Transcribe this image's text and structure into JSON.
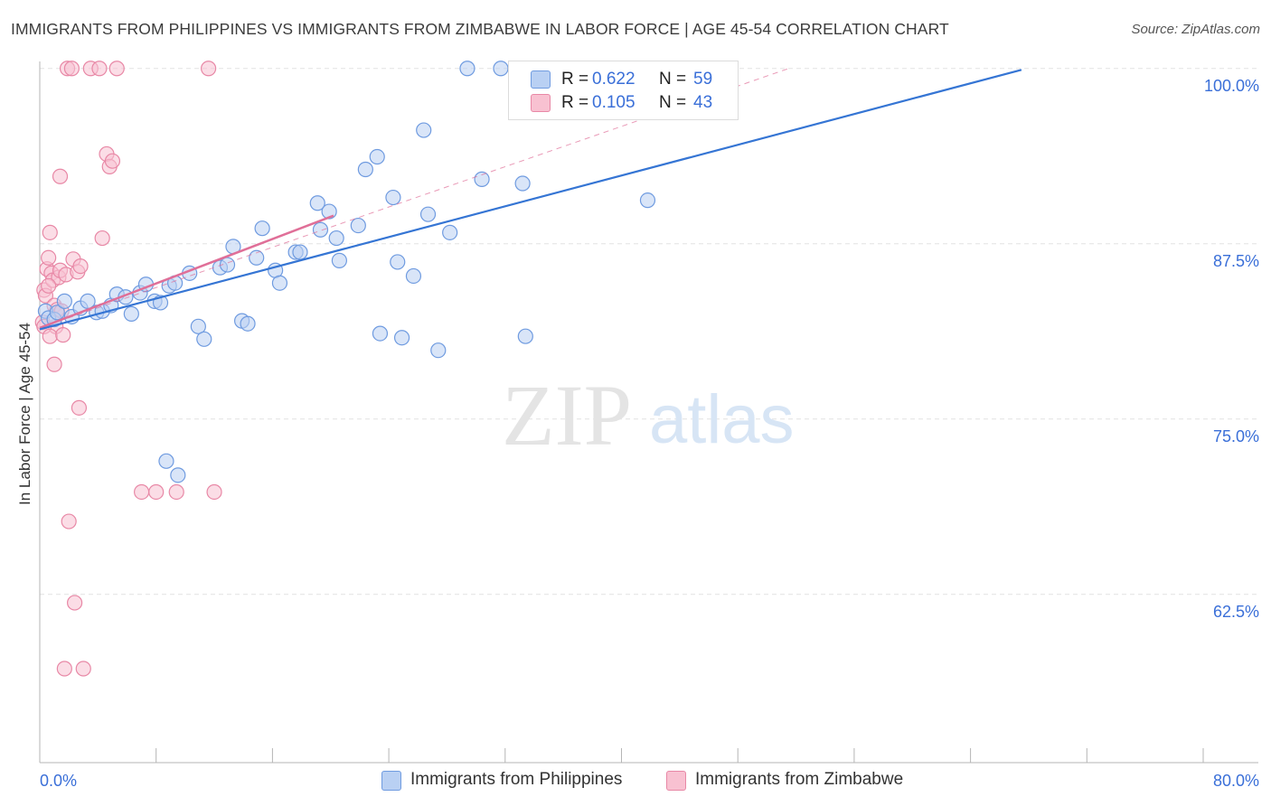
{
  "title": "IMMIGRANTS FROM PHILIPPINES VS IMMIGRANTS FROM ZIMBABWE IN LABOR FORCE | AGE 45-54 CORRELATION CHART",
  "source": "Source: ZipAtlas.com",
  "watermark": {
    "zip": "ZIP",
    "atlas": "atlas"
  },
  "legend": {
    "r_label": "R =",
    "n_label": "N =",
    "philippines": {
      "r": "0.622",
      "n": "59"
    },
    "zimbabwe": {
      "r": "0.105",
      "n": "43"
    }
  },
  "colors": {
    "philippines_fill": "#b9d0f3",
    "philippines_stroke": "#6f9be0",
    "philippines_line": "#3575d4",
    "zimbabwe_fill": "#f8c1d1",
    "zimbabwe_stroke": "#e888a6",
    "zimbabwe_line": "#e06f98",
    "tick_label": "#3a6fd8",
    "grid": "#e2e2e2"
  },
  "chart_data": {
    "type": "scatter",
    "title": "IMMIGRANTS FROM PHILIPPINES VS IMMIGRANTS FROM ZIMBABWE IN LABOR FORCE | AGE 45-54 CORRELATION CHART",
    "xlabel": "",
    "ylabel": "In Labor Force | Age 45-54",
    "xlim": [
      0,
      80
    ],
    "ylim": [
      50.5,
      100.5
    ],
    "x_tick_labels": [
      "0.0%",
      "80.0%"
    ],
    "y_ticks": [
      62.5,
      75,
      87.5,
      100
    ],
    "y_tick_labels": [
      "62.5%",
      "75.0%",
      "87.5%",
      "100.0%"
    ],
    "grid": true,
    "series": [
      {
        "name": "Immigrants from Philippines",
        "trend": {
          "x": [
            0,
            67.5
          ],
          "y": [
            81.4,
            99.9
          ]
        },
        "points": [
          [
            0.4,
            82.7
          ],
          [
            0.6,
            82.2
          ],
          [
            1,
            82.1
          ],
          [
            1.2,
            82.6
          ],
          [
            1.7,
            83.4
          ],
          [
            2.2,
            82.3
          ],
          [
            2.8,
            82.9
          ],
          [
            3.3,
            83.4
          ],
          [
            3.9,
            82.6
          ],
          [
            4.3,
            82.7
          ],
          [
            4.9,
            83.1
          ],
          [
            5.3,
            83.9
          ],
          [
            5.9,
            83.7
          ],
          [
            6.3,
            82.5
          ],
          [
            6.9,
            84
          ],
          [
            7.3,
            84.6
          ],
          [
            7.9,
            83.4
          ],
          [
            8.3,
            83.3
          ],
          [
            8.9,
            84.5
          ],
          [
            9.3,
            84.7
          ],
          [
            10.3,
            85.4
          ],
          [
            10.9,
            81.6
          ],
          [
            11.3,
            80.7
          ],
          [
            12.4,
            85.8
          ],
          [
            12.9,
            86
          ],
          [
            13.3,
            87.3
          ],
          [
            13.9,
            82
          ],
          [
            14.3,
            81.8
          ],
          [
            14.9,
            86.5
          ],
          [
            15.3,
            88.6
          ],
          [
            16.2,
            85.6
          ],
          [
            16.5,
            84.7
          ],
          [
            17.6,
            86.9
          ],
          [
            17.9,
            86.9
          ],
          [
            19.1,
            90.4
          ],
          [
            19.3,
            88.5
          ],
          [
            19.9,
            89.8
          ],
          [
            20.4,
            87.9
          ],
          [
            20.6,
            86.3
          ],
          [
            21.9,
            88.8
          ],
          [
            22.4,
            92.8
          ],
          [
            23.2,
            93.7
          ],
          [
            23.4,
            81.1
          ],
          [
            24.3,
            90.8
          ],
          [
            24.6,
            86.2
          ],
          [
            24.9,
            80.8
          ],
          [
            25.7,
            85.2
          ],
          [
            26.4,
            95.6
          ],
          [
            26.7,
            89.6
          ],
          [
            27.4,
            79.9
          ],
          [
            28.2,
            88.3
          ],
          [
            29.4,
            100
          ],
          [
            30.4,
            92.1
          ],
          [
            31.7,
            100
          ],
          [
            33.2,
            91.8
          ],
          [
            33.4,
            80.9
          ],
          [
            41.8,
            90.6
          ],
          [
            8.7,
            72
          ],
          [
            9.5,
            71
          ]
        ]
      },
      {
        "name": "Immigrants from Zimbabwe",
        "trend": {
          "x": [
            0,
            20.2
          ],
          "y": [
            81.5,
            89.5
          ]
        },
        "trend_extended": {
          "x": [
            0,
            51.5
          ],
          "y": [
            81.5,
            100
          ]
        },
        "points": [
          [
            0.2,
            81.9
          ],
          [
            0.3,
            84.2
          ],
          [
            0.4,
            83.8
          ],
          [
            0.5,
            85.7
          ],
          [
            0.6,
            86.5
          ],
          [
            0.7,
            88.3
          ],
          [
            0.8,
            85.4
          ],
          [
            0.9,
            84.9
          ],
          [
            1,
            83.1
          ],
          [
            1.1,
            81.6
          ],
          [
            1.2,
            82.8
          ],
          [
            1.3,
            85.1
          ],
          [
            1.4,
            85.6
          ],
          [
            0.3,
            81.6
          ],
          [
            0.6,
            84.5
          ],
          [
            0.7,
            80.9
          ],
          [
            1,
            78.9
          ],
          [
            1.4,
            92.3
          ],
          [
            1.5,
            82.7
          ],
          [
            1.6,
            81
          ],
          [
            1.8,
            85.3
          ],
          [
            1.9,
            100
          ],
          [
            2,
            67.7
          ],
          [
            2.2,
            100
          ],
          [
            2.3,
            86.4
          ],
          [
            2.4,
            61.9
          ],
          [
            2.6,
            85.5
          ],
          [
            2.7,
            75.8
          ],
          [
            2.8,
            85.9
          ],
          [
            3,
            57.2
          ],
          [
            3.5,
            100
          ],
          [
            4.1,
            100
          ],
          [
            4.3,
            87.9
          ],
          [
            4.6,
            93.9
          ],
          [
            4.8,
            93
          ],
          [
            5,
            93.4
          ],
          [
            5.3,
            100
          ],
          [
            7,
            69.8
          ],
          [
            8,
            69.8
          ],
          [
            9.4,
            69.8
          ],
          [
            11.6,
            100
          ],
          [
            12,
            69.8
          ],
          [
            1.7,
            57.2
          ]
        ]
      }
    ]
  }
}
